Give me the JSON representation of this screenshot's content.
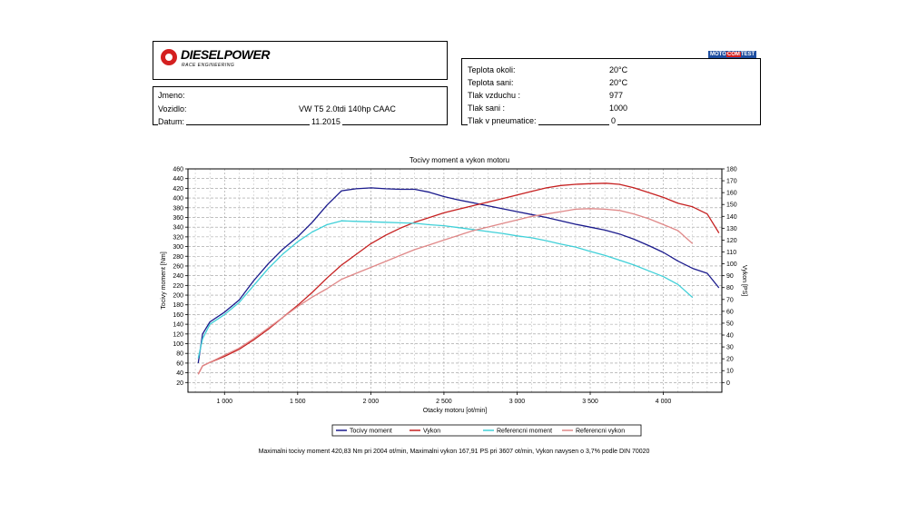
{
  "header": {
    "logo_title": "DIESELPOWER",
    "logo_subtitle": "RACE ENGINEERING",
    "badge": [
      "MOTO",
      "COM",
      "TEST"
    ]
  },
  "vehicle": {
    "jmeno_label": "Jmeno:",
    "jmeno_value": "",
    "vozidlo_label": "Vozidlo:",
    "vozidlo_value": "VW T5 2.0tdi 140hp CAAC",
    "datum_label": "Datum:",
    "datum_value": "11.2015"
  },
  "conditions": [
    {
      "label": "Teplota okoli:",
      "value": "20°C"
    },
    {
      "label": "Teplota sani:",
      "value": "20°C"
    },
    {
      "label": "Tlak vzduchu :",
      "value": "977"
    },
    {
      "label": "Tlak sani :",
      "value": "1000"
    },
    {
      "label": "Tlak v pneumatice:",
      "value": "0"
    }
  ],
  "chart_data": {
    "type": "line",
    "title": "Tocivy moment a vykon motoru",
    "xlabel": "Otacky motoru [ot/min]",
    "ylabel_left": "Tocivy moment [Nm]",
    "ylabel_right": "Vykon [PS]",
    "xlim": [
      750,
      4400
    ],
    "ylim_left": [
      0,
      460
    ],
    "ylim_right": [
      0,
      180
    ],
    "x_ticks": [
      1000,
      1500,
      2000,
      2500,
      3000,
      3500,
      4000
    ],
    "x_tick_labels": [
      "1 000",
      "1 500",
      "2 000",
      "2 500",
      "3 000",
      "3 500",
      "4 000"
    ],
    "y_left_ticks": [
      20,
      40,
      60,
      80,
      100,
      120,
      140,
      160,
      180,
      200,
      220,
      240,
      260,
      280,
      300,
      320,
      340,
      360,
      380,
      400,
      420,
      440,
      460
    ],
    "y_right_ticks": [
      0,
      10,
      20,
      30,
      40,
      50,
      60,
      70,
      80,
      90,
      100,
      110,
      120,
      130,
      140,
      150,
      160,
      170,
      180
    ],
    "grid": true,
    "legend_position": "bottom",
    "series": [
      {
        "name": "Tocivy moment",
        "axis": "left",
        "color": "#1a1a8c",
        "x": [
          820,
          850,
          900,
          1000,
          1100,
          1200,
          1300,
          1400,
          1500,
          1600,
          1700,
          1800,
          1900,
          2004,
          2100,
          2200,
          2300,
          2400,
          2500,
          2600,
          2700,
          2800,
          2900,
          3000,
          3100,
          3200,
          3300,
          3400,
          3500,
          3600,
          3700,
          3800,
          3900,
          4000,
          4100,
          4200,
          4300,
          4380
        ],
        "y": [
          60,
          120,
          145,
          165,
          190,
          230,
          265,
          295,
          320,
          350,
          385,
          415,
          419,
          421,
          419,
          418,
          418,
          412,
          403,
          396,
          390,
          384,
          378,
          372,
          366,
          360,
          353,
          346,
          340,
          334,
          326,
          315,
          302,
          288,
          270,
          255,
          245,
          215
        ]
      },
      {
        "name": "Vykon",
        "axis": "left-power",
        "color": "#c62020",
        "x": [
          820,
          850,
          900,
          1000,
          1100,
          1200,
          1300,
          1400,
          1500,
          1600,
          1700,
          1800,
          1900,
          2000,
          2100,
          2200,
          2300,
          2400,
          2500,
          2600,
          2700,
          2800,
          2900,
          3000,
          3100,
          3200,
          3300,
          3400,
          3500,
          3607,
          3700,
          3800,
          3900,
          4000,
          4100,
          4200,
          4300,
          4380
        ],
        "y": [
          7,
          14,
          17,
          22,
          28,
          36,
          45,
          55,
          65,
          76,
          88,
          99,
          108,
          117,
          124,
          130,
          135,
          139,
          143,
          146,
          149,
          152,
          155,
          158,
          161,
          164,
          166,
          167,
          167.5,
          167.91,
          167,
          164,
          160,
          156,
          151,
          148,
          142,
          126
        ]
      },
      {
        "name": "Referencni moment",
        "axis": "left",
        "color": "#40d0d8",
        "x": [
          820,
          850,
          900,
          1000,
          1100,
          1200,
          1300,
          1400,
          1500,
          1600,
          1700,
          1800,
          1900,
          2000,
          2100,
          2200,
          2300,
          2400,
          2500,
          2600,
          2700,
          2800,
          2900,
          3000,
          3100,
          3200,
          3300,
          3400,
          3500,
          3600,
          3700,
          3800,
          3900,
          4000,
          4100,
          4200
        ],
        "y": [
          70,
          110,
          140,
          160,
          185,
          220,
          255,
          285,
          310,
          330,
          345,
          353,
          352,
          351,
          350,
          349,
          348,
          345,
          343,
          339,
          335,
          331,
          327,
          322,
          318,
          312,
          305,
          299,
          290,
          282,
          272,
          262,
          250,
          238,
          222,
          195
        ]
      },
      {
        "name": "Referencni vykon",
        "axis": "left-power",
        "color": "#e08888",
        "x": [
          820,
          850,
          900,
          1000,
          1100,
          1200,
          1300,
          1400,
          1500,
          1600,
          1700,
          1800,
          1900,
          2000,
          2100,
          2200,
          2300,
          2400,
          2500,
          2600,
          2700,
          2800,
          2900,
          3000,
          3100,
          3200,
          3300,
          3400,
          3500,
          3600,
          3700,
          3800,
          3900,
          4000,
          4100,
          4200
        ],
        "y": [
          7,
          14,
          17,
          23,
          29,
          37,
          46,
          55,
          64,
          72,
          79,
          87,
          92,
          97,
          102,
          107,
          112,
          116,
          120,
          124,
          128,
          131,
          134,
          137,
          140,
          142,
          144,
          146,
          146.5,
          146,
          145,
          142,
          138,
          133,
          128,
          117
        ]
      }
    ]
  },
  "footer": {
    "text": "Maximalni tocivy moment 420,83 Nm pri 2004 ot/min,  Maximalni vykon 167,91 PS pri 3607 ot/min,  Vykon navysen o 3,7% podle DIN 70020"
  }
}
